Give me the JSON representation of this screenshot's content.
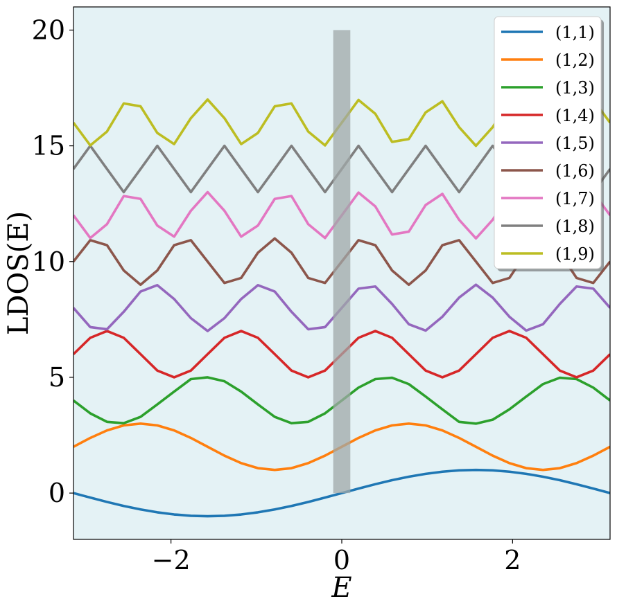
{
  "chart_data": {
    "type": "line",
    "title": "",
    "xlabel": "E",
    "ylabel": "LDOS(E)",
    "xlim": [
      -3.14159,
      3.14159
    ],
    "ylim": [
      -2,
      21
    ],
    "xticks": [
      -2,
      0,
      2
    ],
    "xtick_labels": [
      "−2",
      "0",
      "2"
    ],
    "yticks": [
      0,
      5,
      10,
      15,
      20
    ],
    "ytick_labels": [
      "0",
      "5",
      "10",
      "15",
      "20"
    ],
    "grid": false,
    "background": "#e4f2f5",
    "legend": {
      "placement": "top-right"
    },
    "highlight_band": {
      "x": [
        -0.1,
        0.1
      ],
      "y": [
        0,
        20
      ],
      "color": "#a0a8a8"
    },
    "x": [
      -3.142,
      -2.945,
      -2.749,
      -2.553,
      -2.356,
      -2.16,
      -1.963,
      -1.767,
      -1.571,
      -1.374,
      -1.178,
      -0.982,
      -0.785,
      -0.589,
      -0.393,
      -0.196,
      0.0,
      0.196,
      0.393,
      0.589,
      0.785,
      0.982,
      1.178,
      1.374,
      1.571,
      1.767,
      1.963,
      2.16,
      2.356,
      2.553,
      2.749,
      2.945,
      3.142
    ],
    "series": [
      {
        "name": "(1,1)",
        "color": "#1f77b4",
        "offset": 0,
        "values": [
          0.0,
          -0.195,
          -0.383,
          -0.556,
          -0.707,
          -0.831,
          -0.924,
          -0.981,
          -1.0,
          -0.981,
          -0.924,
          -0.831,
          -0.707,
          -0.556,
          -0.383,
          -0.195,
          0.0,
          0.195,
          0.383,
          0.556,
          0.707,
          0.831,
          0.924,
          0.981,
          1.0,
          0.981,
          0.924,
          0.831,
          0.707,
          0.556,
          0.383,
          0.195,
          0.0
        ]
      },
      {
        "name": "(1,2)",
        "color": "#ff7f0e",
        "offset": 2,
        "values": [
          2.0,
          2.383,
          2.707,
          2.924,
          3.0,
          2.924,
          2.707,
          2.383,
          2.0,
          1.617,
          1.293,
          1.076,
          1.0,
          1.076,
          1.293,
          1.617,
          2.0,
          2.383,
          2.707,
          2.924,
          3.0,
          2.924,
          2.707,
          2.383,
          2.0,
          1.617,
          1.293,
          1.076,
          1.0,
          1.076,
          1.293,
          1.617,
          2.0
        ]
      },
      {
        "name": "(1,3)",
        "color": "#2ca02c",
        "offset": 4,
        "values": [
          4.0,
          3.444,
          3.076,
          3.019,
          3.293,
          3.831,
          4.383,
          4.924,
          5.0,
          4.831,
          4.383,
          3.831,
          3.293,
          3.019,
          3.076,
          3.444,
          4.0,
          4.556,
          4.924,
          4.981,
          4.707,
          4.169,
          3.617,
          3.076,
          3.0,
          3.169,
          3.617,
          4.169,
          4.707,
          4.981,
          4.924,
          4.556,
          4.0
        ]
      },
      {
        "name": "(1,4)",
        "color": "#d62728",
        "offset": 6,
        "values": [
          6.0,
          6.707,
          7.0,
          6.707,
          6.0,
          5.293,
          5.0,
          5.293,
          6.0,
          6.707,
          7.0,
          6.707,
          6.0,
          5.293,
          5.0,
          5.293,
          6.0,
          6.707,
          7.0,
          6.707,
          6.0,
          5.293,
          5.0,
          5.293,
          6.0,
          6.707,
          7.0,
          6.707,
          6.0,
          5.293,
          5.0,
          5.293,
          6.0
        ]
      },
      {
        "name": "(1,5)",
        "color": "#9467bd",
        "offset": 8,
        "values": [
          8.0,
          7.169,
          7.076,
          7.831,
          8.707,
          8.981,
          8.383,
          7.556,
          7.0,
          7.556,
          8.383,
          8.981,
          8.707,
          7.831,
          7.076,
          7.169,
          8.0,
          8.831,
          8.924,
          8.169,
          7.293,
          7.019,
          7.617,
          8.444,
          9.0,
          8.444,
          7.617,
          7.019,
          7.293,
          8.169,
          8.924,
          8.831,
          8.0
        ]
      },
      {
        "name": "(1,6)",
        "color": "#8c564b",
        "offset": 10,
        "values": [
          10.0,
          10.924,
          10.707,
          9.617,
          9.0,
          9.617,
          10.707,
          10.924,
          10.0,
          9.076,
          9.293,
          10.383,
          11.0,
          10.383,
          9.293,
          9.076,
          10.0,
          10.924,
          10.707,
          9.617,
          9.0,
          9.617,
          10.707,
          10.924,
          10.0,
          9.076,
          9.293,
          10.383,
          11.0,
          10.383,
          9.293,
          9.076,
          10.0
        ]
      },
      {
        "name": "(1,7)",
        "color": "#e377c2",
        "offset": 12,
        "values": [
          12.0,
          11.019,
          11.617,
          12.831,
          12.707,
          11.556,
          11.076,
          12.195,
          13.0,
          12.195,
          11.076,
          11.556,
          12.707,
          12.831,
          11.617,
          11.019,
          12.0,
          12.981,
          12.383,
          11.169,
          11.293,
          12.444,
          12.924,
          11.805,
          11.0,
          11.805,
          12.924,
          12.444,
          11.293,
          11.169,
          12.383,
          12.981,
          12.0
        ]
      },
      {
        "name": "(1,8)",
        "color": "#7f7f7f",
        "offset": 14,
        "values": [
          14.0,
          15.0,
          14.0,
          13.0,
          14.0,
          15.0,
          14.0,
          13.0,
          14.0,
          15.0,
          14.0,
          13.0,
          14.0,
          15.0,
          14.0,
          13.0,
          14.0,
          15.0,
          14.0,
          13.0,
          14.0,
          15.0,
          14.0,
          13.0,
          14.0,
          15.0,
          14.0,
          13.0,
          14.0,
          15.0,
          14.0,
          13.0,
          14.0
        ]
      },
      {
        "name": "(1,9)",
        "color": "#bcbd22",
        "offset": 16,
        "values": [
          16.0,
          15.019,
          15.617,
          16.831,
          16.707,
          15.556,
          15.076,
          16.195,
          17.0,
          16.195,
          15.076,
          15.556,
          16.707,
          16.831,
          15.617,
          15.019,
          16.0,
          16.981,
          16.383,
          15.169,
          15.293,
          16.444,
          16.924,
          15.805,
          15.0,
          15.805,
          16.924,
          16.444,
          15.293,
          15.169,
          16.383,
          16.981,
          16.0
        ]
      }
    ]
  }
}
